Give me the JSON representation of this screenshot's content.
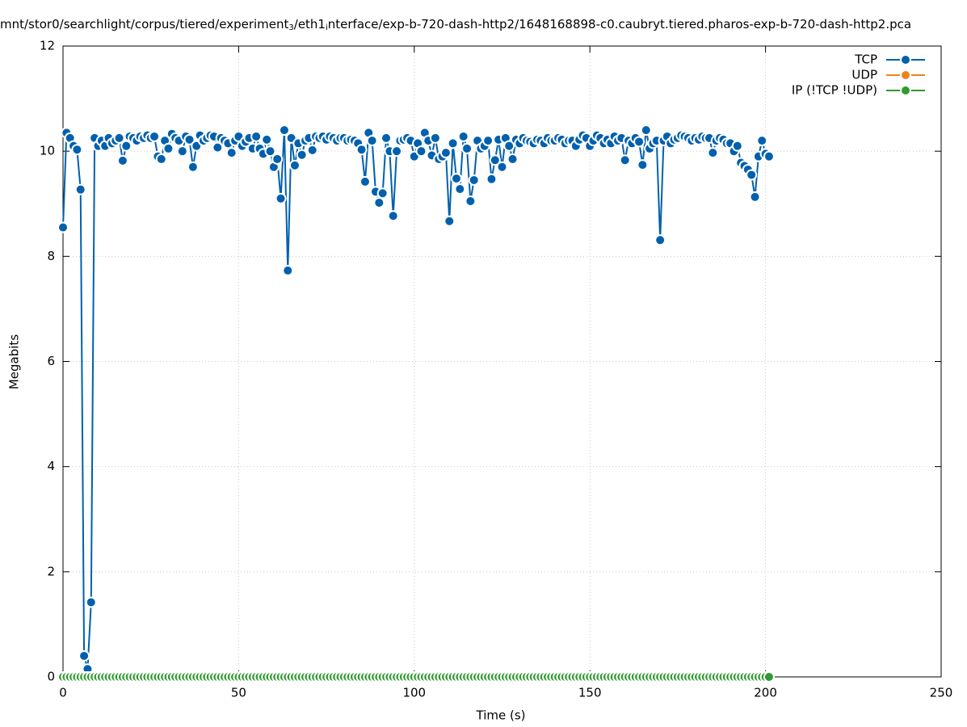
{
  "chart_data": {
    "type": "line",
    "title": [
      "mnt/stor0/searchlight/corpus/tiered/experiment",
      "3",
      "/eth1",
      "i",
      "nterface/exp-b-720-dash-http2/1648168898-c0.caubryt.tiered.pharos-exp-b-720-dash-http2.pca"
    ],
    "x_label": "Time (s)",
    "y_label": "Megabits",
    "xlim": [
      0,
      250
    ],
    "xticks": [
      0,
      50,
      100,
      150,
      200,
      250
    ],
    "ylim": [
      0,
      12
    ],
    "yticks": [
      0,
      2,
      4,
      6,
      8,
      10,
      12
    ],
    "grid": true,
    "legend": "top-right",
    "x": [
      0,
      1,
      2,
      3,
      4,
      5,
      6,
      7,
      8,
      9,
      10,
      11,
      12,
      13,
      14,
      15,
      16,
      17,
      18,
      19,
      20,
      21,
      22,
      23,
      24,
      25,
      26,
      27,
      28,
      29,
      30,
      31,
      32,
      33,
      34,
      35,
      36,
      37,
      38,
      39,
      40,
      41,
      42,
      43,
      44,
      45,
      46,
      47,
      48,
      49,
      50,
      51,
      52,
      53,
      54,
      55,
      56,
      57,
      58,
      59,
      60,
      61,
      62,
      63,
      64,
      65,
      66,
      67,
      68,
      69,
      70,
      71,
      72,
      73,
      74,
      75,
      76,
      77,
      78,
      79,
      80,
      81,
      82,
      83,
      84,
      85,
      86,
      87,
      88,
      89,
      90,
      91,
      92,
      93,
      94,
      95,
      96,
      97,
      98,
      99,
      100,
      101,
      102,
      103,
      104,
      105,
      106,
      107,
      108,
      109,
      110,
      111,
      112,
      113,
      114,
      115,
      116,
      117,
      118,
      119,
      120,
      121,
      122,
      123,
      124,
      125,
      126,
      127,
      128,
      129,
      130,
      131,
      132,
      133,
      134,
      135,
      136,
      137,
      138,
      139,
      140,
      141,
      142,
      143,
      144,
      145,
      146,
      147,
      148,
      149,
      150,
      151,
      152,
      153,
      154,
      155,
      156,
      157,
      158,
      159,
      160,
      161,
      162,
      163,
      164,
      165,
      166,
      167,
      168,
      169,
      170,
      171,
      172,
      173,
      174,
      175,
      176,
      177,
      178,
      179,
      180,
      181,
      182,
      183,
      184,
      185,
      186,
      187,
      188,
      189,
      190,
      191,
      192,
      193,
      194,
      195,
      196,
      197,
      198,
      199,
      200,
      201
    ],
    "series": [
      {
        "name": "TCP",
        "color": "#0060ad",
        "values": [
          8.55,
          10.35,
          10.25,
          10.1,
          10.03,
          9.27,
          0.4,
          0.15,
          1.42,
          10.25,
          10.1,
          10.2,
          10.1,
          10.25,
          10.15,
          10.2,
          10.25,
          9.82,
          10.1,
          10.28,
          10.25,
          10.2,
          10.28,
          10.25,
          10.3,
          10.25,
          10.28,
          9.9,
          9.85,
          10.2,
          10.05,
          10.33,
          10.25,
          10.2,
          10.0,
          10.28,
          10.22,
          9.7,
          10.1,
          10.3,
          10.2,
          10.25,
          10.3,
          10.28,
          10.07,
          10.25,
          10.2,
          10.15,
          9.97,
          10.2,
          10.28,
          10.1,
          10.18,
          10.25,
          10.05,
          10.28,
          10.05,
          9.95,
          10.22,
          10.0,
          9.7,
          9.85,
          9.1,
          10.4,
          7.73,
          10.25,
          9.73,
          10.15,
          9.93,
          10.2,
          10.25,
          10.02,
          10.28,
          10.25,
          10.28,
          10.22,
          10.28,
          10.25,
          10.2,
          10.25,
          10.25,
          10.2,
          10.22,
          10.2,
          10.15,
          10.03,
          9.42,
          10.35,
          10.2,
          9.23,
          9.02,
          9.2,
          10.25,
          10.0,
          8.77,
          10.0,
          10.2,
          10.22,
          10.25,
          10.2,
          9.9,
          10.15,
          10.0,
          10.35,
          10.2,
          9.92,
          10.25,
          9.85,
          9.9,
          9.97,
          8.67,
          10.15,
          9.48,
          9.28,
          10.28,
          10.05,
          9.05,
          9.45,
          10.2,
          10.05,
          10.1,
          10.2,
          9.47,
          9.83,
          10.22,
          9.7,
          10.25,
          10.1,
          9.85,
          10.22,
          10.15,
          10.25,
          10.2,
          10.18,
          10.15,
          10.22,
          10.2,
          10.15,
          10.25,
          10.2,
          10.2,
          10.25,
          10.22,
          10.15,
          10.2,
          10.2,
          10.1,
          10.22,
          10.3,
          10.25,
          10.1,
          10.2,
          10.3,
          10.25,
          10.15,
          10.22,
          10.15,
          10.28,
          10.2,
          10.25,
          9.83,
          10.2,
          10.15,
          10.25,
          10.18,
          9.74,
          10.4,
          10.05,
          10.15,
          10.2,
          8.31,
          10.2,
          10.28,
          10.15,
          10.22,
          10.25,
          10.3,
          10.28,
          10.25,
          10.2,
          10.25,
          10.22,
          10.28,
          10.25,
          10.25,
          9.97,
          10.2,
          10.25,
          10.22,
          10.15,
          10.15,
          10.0,
          10.1,
          9.78,
          9.72,
          9.65,
          9.55,
          9.13,
          9.9,
          10.2,
          9.95,
          9.9
        ]
      },
      {
        "name": "UDP",
        "color": "#f0821e",
        "values": [
          0,
          0,
          0,
          0,
          0,
          0,
          0,
          0,
          0,
          0,
          0,
          0,
          0,
          0,
          0,
          0,
          0,
          0,
          0,
          0,
          0,
          0,
          0,
          0,
          0,
          0,
          0,
          0,
          0,
          0,
          0,
          0,
          0,
          0,
          0,
          0,
          0,
          0,
          0,
          0,
          0,
          0,
          0,
          0,
          0,
          0,
          0,
          0,
          0,
          0,
          0,
          0,
          0,
          0,
          0,
          0,
          0,
          0,
          0,
          0,
          0,
          0,
          0,
          0,
          0,
          0,
          0,
          0,
          0,
          0,
          0,
          0,
          0,
          0,
          0,
          0,
          0,
          0,
          0,
          0,
          0,
          0,
          0,
          0,
          0,
          0,
          0,
          0,
          0,
          0,
          0,
          0,
          0,
          0,
          0,
          0,
          0,
          0,
          0,
          0,
          0,
          0,
          0,
          0,
          0,
          0,
          0,
          0,
          0,
          0,
          0,
          0,
          0,
          0,
          0,
          0,
          0,
          0,
          0,
          0,
          0,
          0,
          0,
          0,
          0,
          0,
          0,
          0,
          0,
          0,
          0,
          0,
          0,
          0,
          0,
          0,
          0,
          0,
          0,
          0,
          0,
          0,
          0,
          0,
          0,
          0,
          0,
          0,
          0,
          0,
          0,
          0,
          0,
          0,
          0,
          0,
          0,
          0,
          0,
          0,
          0,
          0,
          0,
          0,
          0,
          0,
          0,
          0,
          0,
          0,
          0,
          0,
          0,
          0,
          0,
          0,
          0,
          0,
          0,
          0,
          0,
          0,
          0,
          0,
          0,
          0,
          0,
          0,
          0,
          0,
          0,
          0,
          0,
          0,
          0,
          0,
          0,
          0,
          0,
          0,
          0,
          0
        ]
      },
      {
        "name": "IP (!TCP  !UDP)",
        "color": "#2f9a2f",
        "values": [
          0,
          0,
          0,
          0,
          0,
          0,
          0,
          0,
          0,
          0,
          0,
          0,
          0,
          0,
          0,
          0,
          0,
          0,
          0,
          0,
          0,
          0,
          0,
          0,
          0,
          0,
          0,
          0,
          0,
          0,
          0,
          0,
          0,
          0,
          0,
          0,
          0,
          0,
          0,
          0,
          0,
          0,
          0,
          0,
          0,
          0,
          0,
          0,
          0,
          0,
          0,
          0,
          0,
          0,
          0,
          0,
          0,
          0,
          0,
          0,
          0,
          0,
          0,
          0,
          0,
          0,
          0,
          0,
          0,
          0,
          0,
          0,
          0,
          0,
          0,
          0,
          0,
          0,
          0,
          0,
          0,
          0,
          0,
          0,
          0,
          0,
          0,
          0,
          0,
          0,
          0,
          0,
          0,
          0,
          0,
          0,
          0,
          0,
          0,
          0,
          0,
          0,
          0,
          0,
          0,
          0,
          0,
          0,
          0,
          0,
          0,
          0,
          0,
          0,
          0,
          0,
          0,
          0,
          0,
          0,
          0,
          0,
          0,
          0,
          0,
          0,
          0,
          0,
          0,
          0,
          0,
          0,
          0,
          0,
          0,
          0,
          0,
          0,
          0,
          0,
          0,
          0,
          0,
          0,
          0,
          0,
          0,
          0,
          0,
          0,
          0,
          0,
          0,
          0,
          0,
          0,
          0,
          0,
          0,
          0,
          0,
          0,
          0,
          0,
          0,
          0,
          0,
          0,
          0,
          0,
          0,
          0,
          0,
          0,
          0,
          0,
          0,
          0,
          0,
          0,
          0,
          0,
          0,
          0,
          0,
          0,
          0,
          0,
          0,
          0,
          0,
          0,
          0,
          0,
          0,
          0,
          0,
          0,
          0,
          0,
          0,
          0
        ]
      }
    ]
  }
}
